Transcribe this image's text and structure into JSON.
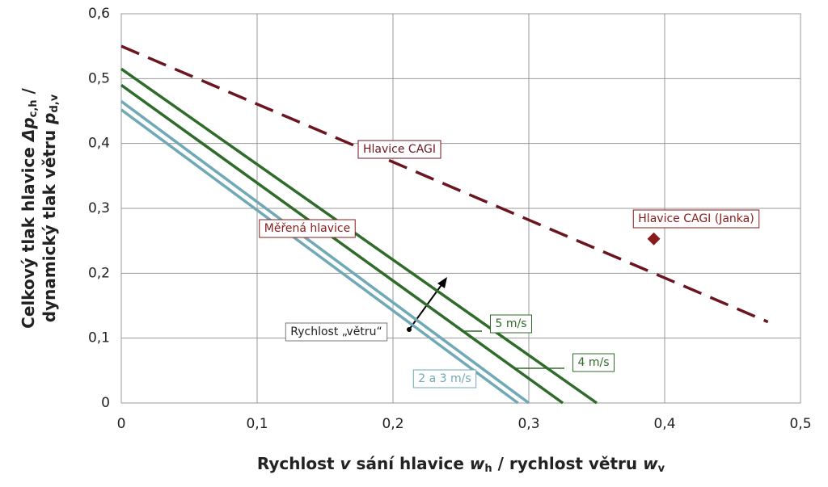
{
  "chart_data": {
    "type": "line",
    "x_label": [
      "Rychlost ",
      "v",
      " sání hlavice  ",
      "w",
      "h",
      " / rychlost větru ",
      "w",
      "v"
    ],
    "y_label": [
      [
        "Celkový tlak hlavice  ",
        "Δp",
        "c,h",
        " /"
      ],
      [
        "dynamický tlak větru ",
        "p",
        "d,v"
      ]
    ],
    "xlim": [
      0,
      0.5
    ],
    "ylim": [
      0,
      0.6
    ],
    "grid": true,
    "xticks": [
      0,
      {
        "value": 0.1,
        "label": "0,1"
      },
      {
        "value": 0.2,
        "label": "0,2"
      },
      {
        "value": 0.3,
        "label": "0,3"
      },
      {
        "value": 0.4,
        "label": "0,4"
      },
      {
        "value": 0.5,
        "label": "0,5"
      }
    ],
    "yticks": [
      0,
      {
        "value": 0.1,
        "label": "0,1"
      },
      {
        "value": 0.2,
        "label": "0,2"
      },
      {
        "value": 0.3,
        "label": "0,3"
      },
      {
        "value": 0.4,
        "label": "0,4"
      },
      {
        "value": 0.5,
        "label": "0,5"
      },
      {
        "value": 0.6,
        "label": "0,6"
      }
    ],
    "series": [
      {
        "name": "Hlavice CAGI",
        "color": "#6b1520",
        "dashed": true,
        "x": [
          0,
          0.476
        ],
        "values": [
          0.55,
          0.125
        ]
      },
      {
        "name": "5 m/s",
        "color": "#2f6b2a",
        "x": [
          0,
          0.35
        ],
        "values": [
          0.515,
          0
        ]
      },
      {
        "name": "4 m/s",
        "color": "#2f6b2a",
        "x": [
          0,
          0.325
        ],
        "values": [
          0.49,
          0
        ]
      },
      {
        "color": "#6fa9b6",
        "x": [
          0,
          0.3
        ],
        "values": [
          0.465,
          0
        ]
      },
      {
        "color": "#6fa9b6",
        "x": [
          0,
          0.292
        ],
        "values": [
          0.452,
          0
        ]
      },
      {
        "name": "Hlavice CAGI (Janka)",
        "type": "scatter",
        "color": "#8b1a1a",
        "x": [
          0.392
        ],
        "values": [
          0.253
        ]
      }
    ],
    "annotations": [
      {
        "text": "Měřená hlavice",
        "color": "#8b1a1a"
      },
      {
        "text": "Rychlost „větru“",
        "color": "#777777"
      },
      {
        "text": "2 a 3 m/s",
        "color": "#6fa9b6"
      }
    ]
  }
}
